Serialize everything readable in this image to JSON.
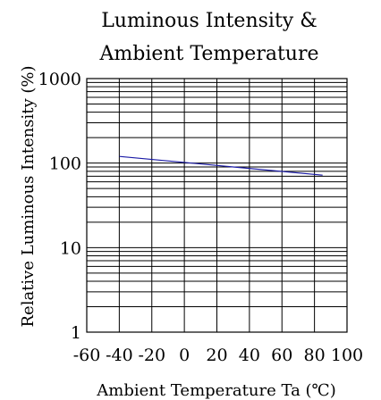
{
  "colors": {
    "background": "#ffffff",
    "grid": "#000000",
    "series_line": "#1a1aa6",
    "text": "#000000"
  },
  "chart_data": {
    "type": "line",
    "title": [
      "Luminous Intensity &",
      "Ambient Temperature"
    ],
    "xlabel": "Ambient Temperature Ta (℃)",
    "ylabel": "Relative Luminous Intensity (%)",
    "xlim": [
      -60,
      100
    ],
    "ylim": [
      1,
      1000
    ],
    "y_scale": "log",
    "grid": true,
    "x_tick_labels": [
      "-60",
      "-40",
      "-20",
      "0",
      "20",
      "40",
      "60",
      "80",
      "100"
    ],
    "x_ticks": [
      -60,
      -40,
      -20,
      0,
      20,
      40,
      60,
      80,
      100
    ],
    "y_tick_labels": [
      "1",
      "10",
      "100",
      "1000"
    ],
    "y_ticks": [
      1,
      10,
      100,
      1000
    ],
    "y_grid_minor": [
      2,
      3,
      4,
      5,
      6,
      7,
      8,
      9
    ],
    "series": [
      {
        "x": [
          -40,
          85
        ],
        "y": [
          120,
          72
        ]
      }
    ]
  }
}
